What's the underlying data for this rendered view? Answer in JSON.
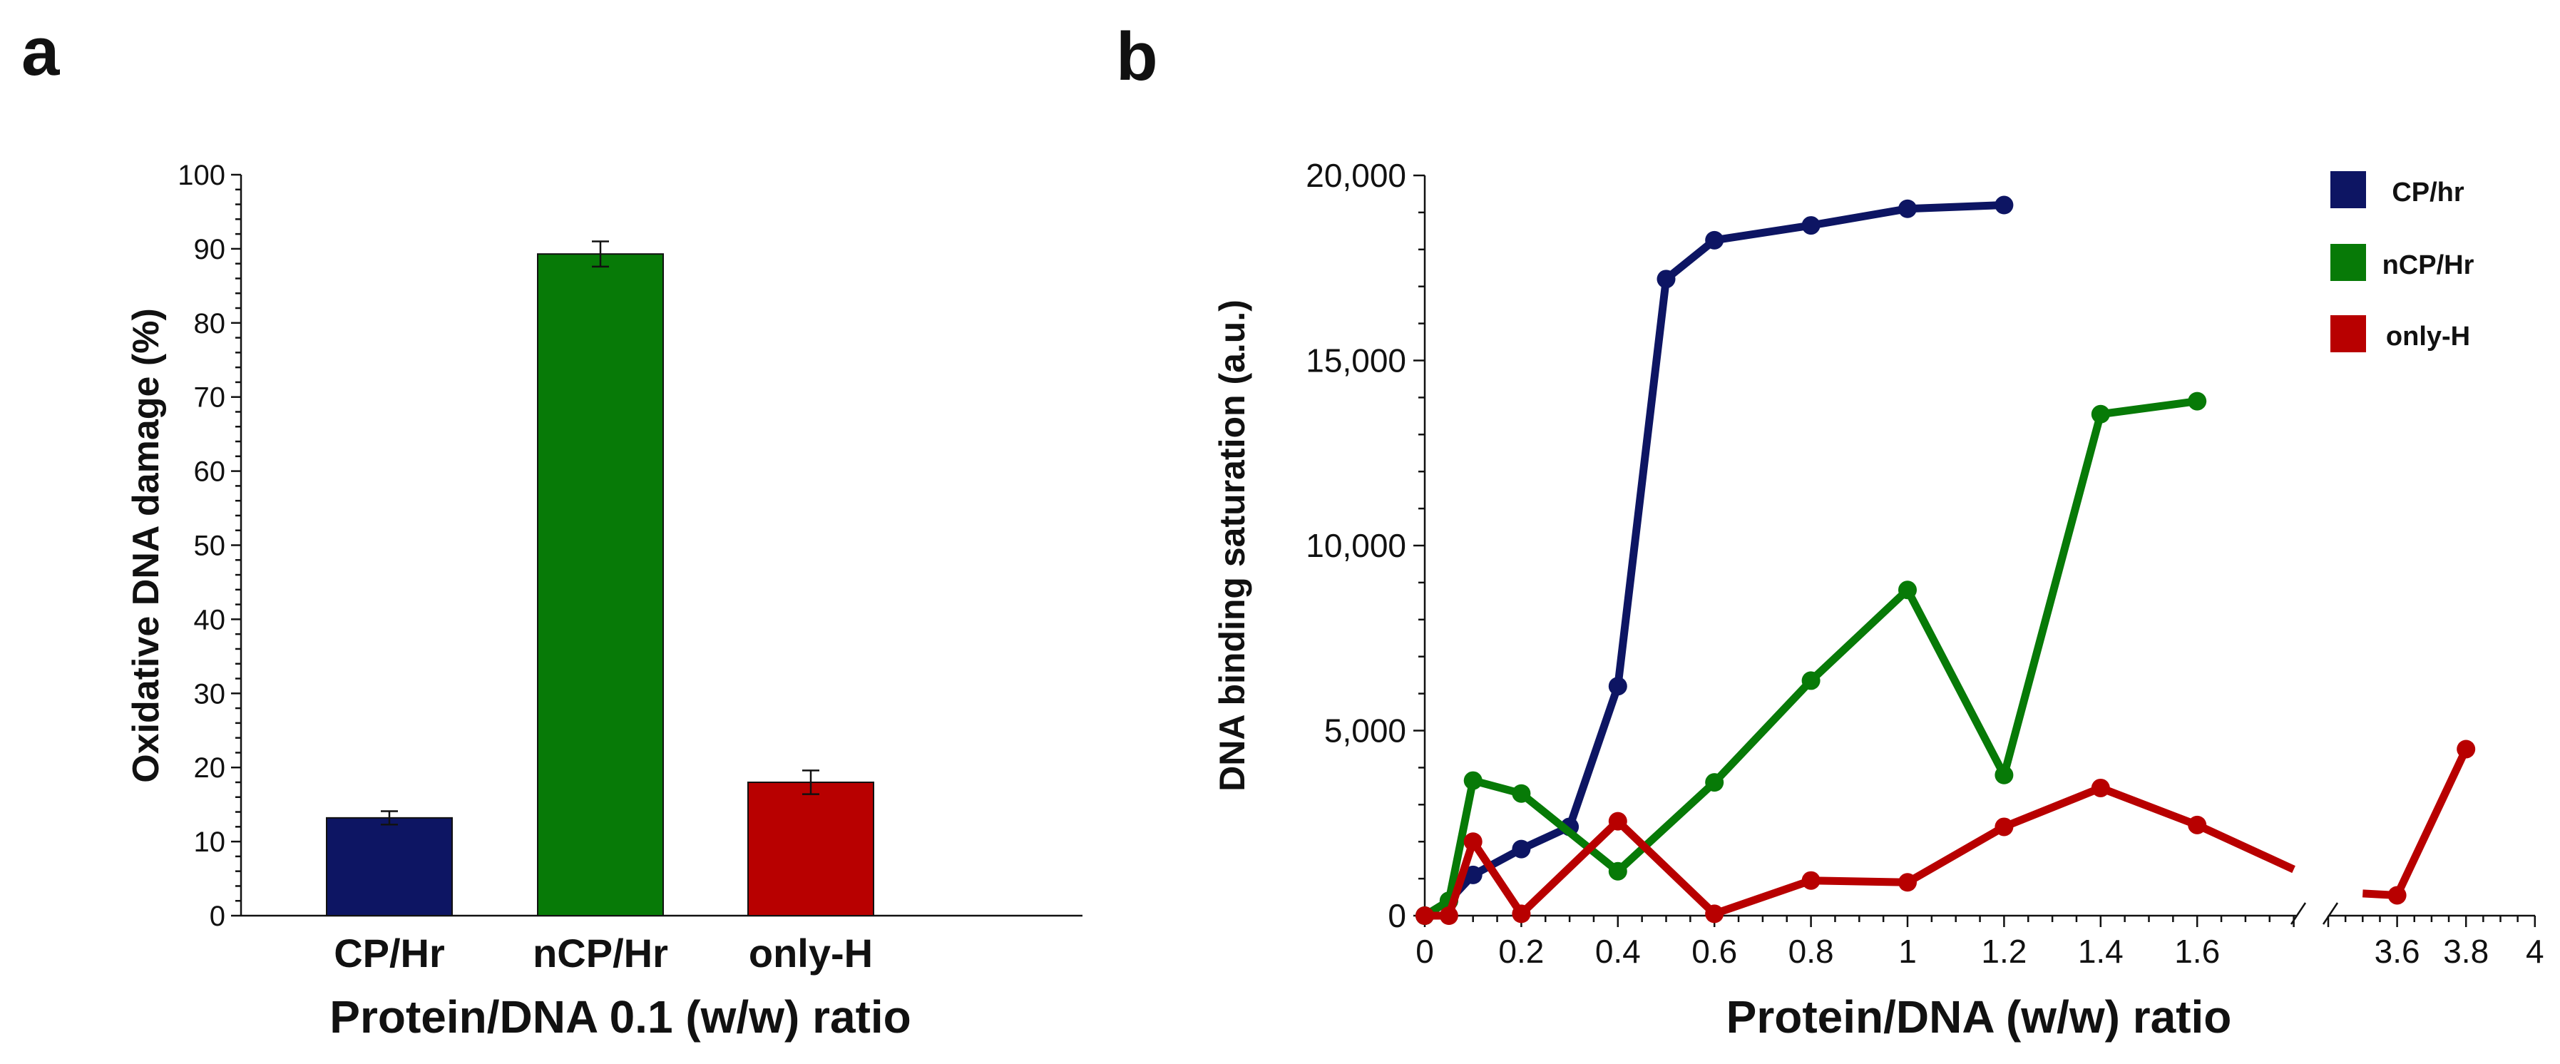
{
  "panel_a": {
    "letter": "a",
    "chart_data": {
      "type": "bar",
      "title": "",
      "categories": [
        "CP/Hr",
        "nCP/Hr",
        "only-H"
      ],
      "values": [
        13.2,
        89.3,
        18.0
      ],
      "errors": [
        0.9,
        1.7,
        1.6
      ],
      "colors": [
        "#0d1563",
        "#077a07",
        "#b80000"
      ],
      "ylim": [
        0,
        100
      ],
      "yticks": [
        "0",
        "10",
        "20",
        "30",
        "40",
        "50",
        "60",
        "70",
        "80",
        "90",
        "100"
      ],
      "xlabel": "Protein/DNA 0.1 (w/w) ratio",
      "ylabel": "Oxidative DNA damage (%)"
    }
  },
  "panel_b": {
    "letter": "b",
    "chart_data": {
      "type": "line",
      "title": "",
      "xlabel": "Protein/DNA (w/w) ratio",
      "ylabel": "DNA binding saturation (a.u.)",
      "ylim": [
        0,
        20000
      ],
      "yticks": [
        "0",
        "5,000",
        "10,000",
        "15,000",
        "20,000"
      ],
      "xticks_left": [
        "0",
        "0.2",
        "0.4",
        "0.6",
        "0.8",
        "1",
        "1.2",
        "1.4",
        "1.6"
      ],
      "xticks_right": [
        "3.6",
        "3.8",
        "4"
      ],
      "xrange_left": [
        0,
        1.8
      ],
      "xrange_right": [
        3.4,
        4.0
      ],
      "axis_break": true,
      "legend_position": "top-right",
      "series": [
        {
          "name": "CP/hr",
          "color": "#0d1563",
          "x": [
            0,
            0.05,
            0.1,
            0.2,
            0.3,
            0.4,
            0.5,
            0.6,
            0.8,
            1.0,
            1.2
          ],
          "y": [
            0,
            400,
            1100,
            1800,
            2400,
            6200,
            17200,
            18250,
            18650,
            19100,
            19200
          ]
        },
        {
          "name": "nCP/Hr",
          "color": "#077a07",
          "x": [
            0,
            0.05,
            0.1,
            0.2,
            0.4,
            0.6,
            0.8,
            1.0,
            1.2,
            1.4,
            1.6
          ],
          "y": [
            0,
            400,
            3650,
            3300,
            1200,
            3600,
            6350,
            8800,
            3800,
            13550,
            13900
          ]
        },
        {
          "name": "only-H",
          "color": "#b80000",
          "x": [
            0,
            0.05,
            0.1,
            0.2,
            0.4,
            0.6,
            0.8,
            1.0,
            1.2,
            1.4,
            1.6,
            1.8,
            3.5,
            3.6,
            3.8
          ],
          "y": [
            0,
            0,
            2000,
            50,
            2550,
            50,
            950,
            900,
            2400,
            3450,
            2450,
            1250,
            600,
            550,
            4500
          ],
          "markers": [
            true,
            true,
            true,
            true,
            true,
            true,
            true,
            true,
            true,
            true,
            true,
            false,
            false,
            true,
            true
          ]
        }
      ]
    }
  }
}
